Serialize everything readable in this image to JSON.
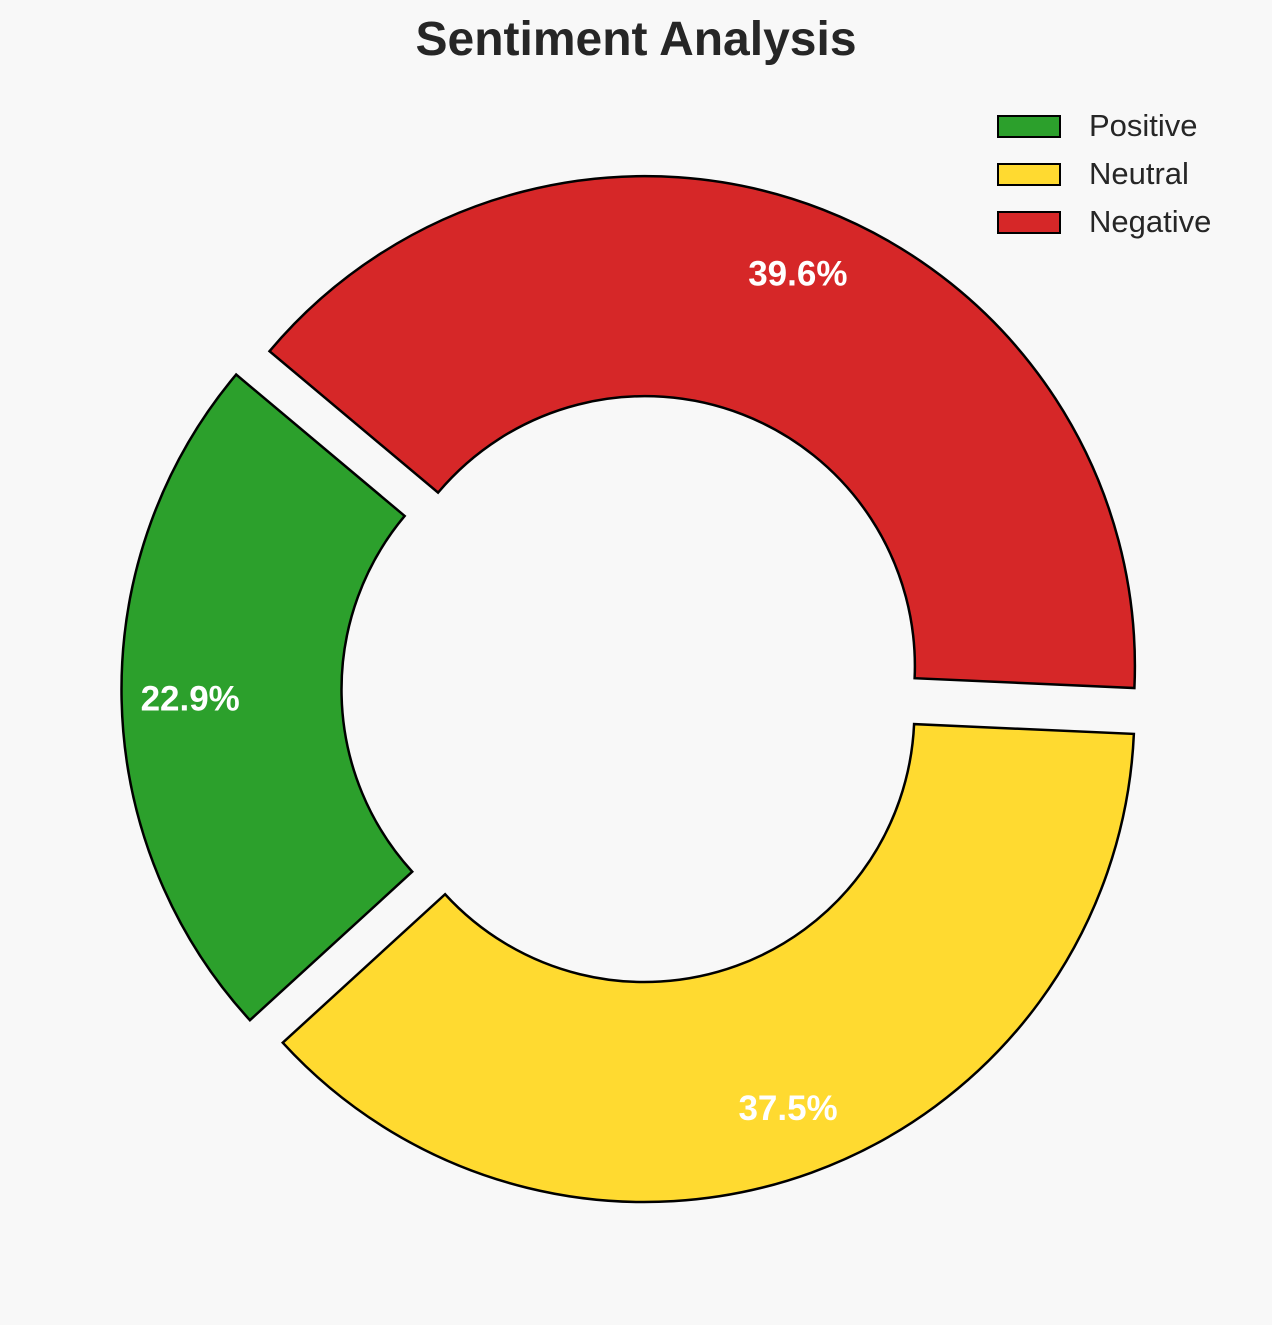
{
  "chart_data": {
    "type": "pie",
    "title": "Sentiment Analysis",
    "donut": true,
    "start_angle_deg": 140,
    "explode": 0.05,
    "legend_position": "top-right",
    "slices": [
      {
        "label": "Positive",
        "value": 22.9,
        "pct_label": "22.9%",
        "color": "#2ca02c"
      },
      {
        "label": "Neutral",
        "value": 37.5,
        "pct_label": "37.5%",
        "color": "#ffda30"
      },
      {
        "label": "Negative",
        "value": 39.6,
        "pct_label": "39.6%",
        "color": "#d62728"
      }
    ]
  }
}
